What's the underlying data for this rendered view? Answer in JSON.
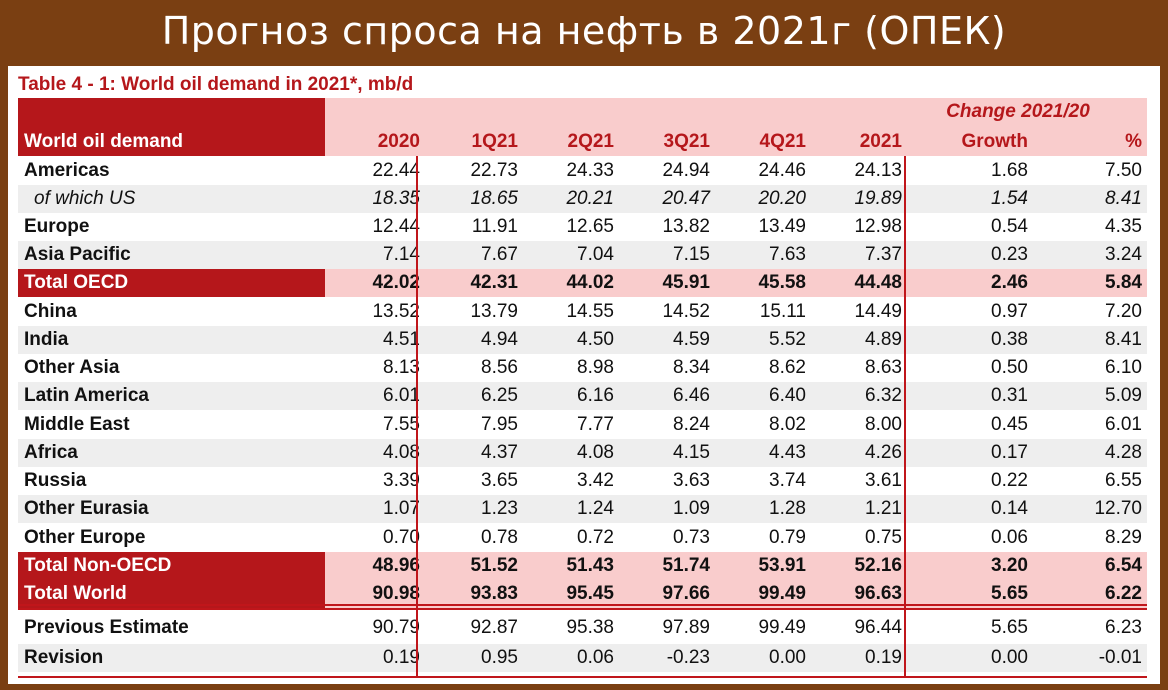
{
  "banner_title": "Прогноз спроса на нефть в 2021г (ОПЕК)",
  "table_caption": "Table 4 - 1: World oil demand in 2021*, mb/d",
  "header": {
    "row_label": "World oil demand",
    "change_group": "Change 2021/20",
    "columns": [
      "2020",
      "1Q21",
      "2Q21",
      "3Q21",
      "4Q21",
      "2021",
      "Growth",
      "%"
    ]
  },
  "rows": [
    {
      "label": "Americas",
      "values": [
        "22.44",
        "22.73",
        "24.33",
        "24.94",
        "24.46",
        "24.13",
        "1.68",
        "7.50"
      ]
    },
    {
      "label": "of which US",
      "values": [
        "18.35",
        "18.65",
        "20.21",
        "20.47",
        "20.20",
        "19.89",
        "1.54",
        "8.41"
      ]
    },
    {
      "label": "Europe",
      "values": [
        "12.44",
        "11.91",
        "12.65",
        "13.82",
        "13.49",
        "12.98",
        "0.54",
        "4.35"
      ]
    },
    {
      "label": "Asia Pacific",
      "values": [
        "7.14",
        "7.67",
        "7.04",
        "7.15",
        "7.63",
        "7.37",
        "0.23",
        "3.24"
      ]
    },
    {
      "label": "Total OECD",
      "values": [
        "42.02",
        "42.31",
        "44.02",
        "45.91",
        "45.58",
        "44.48",
        "2.46",
        "5.84"
      ]
    },
    {
      "label": "China",
      "values": [
        "13.52",
        "13.79",
        "14.55",
        "14.52",
        "15.11",
        "14.49",
        "0.97",
        "7.20"
      ]
    },
    {
      "label": "India",
      "values": [
        "4.51",
        "4.94",
        "4.50",
        "4.59",
        "5.52",
        "4.89",
        "0.38",
        "8.41"
      ]
    },
    {
      "label": "Other Asia",
      "values": [
        "8.13",
        "8.56",
        "8.98",
        "8.34",
        "8.62",
        "8.63",
        "0.50",
        "6.10"
      ]
    },
    {
      "label": "Latin America",
      "values": [
        "6.01",
        "6.25",
        "6.16",
        "6.46",
        "6.40",
        "6.32",
        "0.31",
        "5.09"
      ]
    },
    {
      "label": "Middle East",
      "values": [
        "7.55",
        "7.95",
        "7.77",
        "8.24",
        "8.02",
        "8.00",
        "0.45",
        "6.01"
      ]
    },
    {
      "label": "Africa",
      "values": [
        "4.08",
        "4.37",
        "4.08",
        "4.15",
        "4.43",
        "4.26",
        "0.17",
        "4.28"
      ]
    },
    {
      "label": "Russia",
      "values": [
        "3.39",
        "3.65",
        "3.42",
        "3.63",
        "3.74",
        "3.61",
        "0.22",
        "6.55"
      ]
    },
    {
      "label": "Other Eurasia",
      "values": [
        "1.07",
        "1.23",
        "1.24",
        "1.09",
        "1.28",
        "1.21",
        "0.14",
        "12.70"
      ]
    },
    {
      "label": "Other Europe",
      "values": [
        "0.70",
        "0.78",
        "0.72",
        "0.73",
        "0.79",
        "0.75",
        "0.06",
        "8.29"
      ]
    },
    {
      "label": "Total Non-OECD",
      "values": [
        "48.96",
        "51.52",
        "51.43",
        "51.74",
        "53.91",
        "52.16",
        "3.20",
        "6.54"
      ]
    },
    {
      "label": "Total World",
      "values": [
        "90.98",
        "93.83",
        "95.45",
        "97.66",
        "99.49",
        "96.63",
        "5.65",
        "6.22"
      ]
    },
    {
      "label": "Previous Estimate",
      "values": [
        "90.79",
        "92.87",
        "95.38",
        "97.89",
        "99.49",
        "96.44",
        "5.65",
        "6.23"
      ]
    },
    {
      "label": "Revision",
      "values": [
        "0.19",
        "0.95",
        "0.06",
        "-0.23",
        "0.00",
        "0.19",
        "0.00",
        "-0.01"
      ]
    }
  ],
  "colors": {
    "accent_red": "#b5171b",
    "pink": "#f9cccc",
    "frame_brown": "#7a3f12"
  }
}
